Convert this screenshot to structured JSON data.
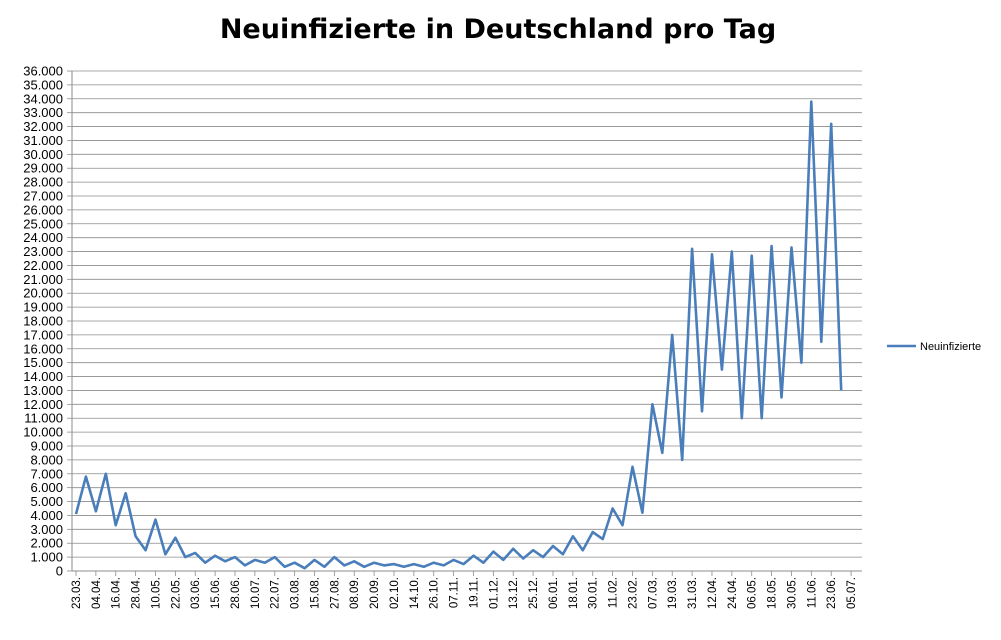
{
  "chart_data": {
    "type": "line",
    "title": "Neuinfizierte in Deutschland pro Tag",
    "xlabel": "",
    "ylabel": "",
    "ylim": [
      0,
      36000
    ],
    "y_step": 1000,
    "grid": true,
    "legend_position": "right",
    "series_color": "#4a7ebb",
    "x_tick_labels": [
      "23.03.",
      "04.04.",
      "16.04.",
      "28.04.",
      "10.05.",
      "22.05.",
      "03.06.",
      "15.06.",
      "28.06.",
      "10.07.",
      "22.07.",
      "03.08.",
      "15.08.",
      "27.08.",
      "08.09.",
      "20.09.",
      "02.10.",
      "14.10.",
      "26.10.",
      "07.11.",
      "19.11.",
      "01.12.",
      "13.12.",
      "25.12.",
      "06.01.",
      "18.01.",
      "30.01.",
      "11.02.",
      "23.02.",
      "07.03.",
      "19.03.",
      "31.03.",
      "12.04.",
      "24.04.",
      "06.05.",
      "18.05.",
      "30.05.",
      "11.06.",
      "23.06.",
      "05.07."
    ],
    "y_tick_labels": [
      "0",
      "1.000",
      "2.000",
      "3.000",
      "4.000",
      "5.000",
      "6.000",
      "7.000",
      "8.000",
      "9.000",
      "10.000",
      "11.000",
      "12.000",
      "13.000",
      "14.000",
      "15.000",
      "16.000",
      "17.000",
      "18.000",
      "19.000",
      "20.000",
      "21.000",
      "22.000",
      "23.000",
      "24.000",
      "25.000",
      "26.000",
      "27.000",
      "28.000",
      "29.000",
      "30.000",
      "31.000",
      "32.000",
      "33.000",
      "34.000",
      "35.000",
      "36.000"
    ],
    "series": [
      {
        "name": "Neuinfizierte",
        "x": [
          0,
          0.5,
          1,
          1.5,
          2,
          2.5,
          3,
          3.5,
          4,
          4.5,
          5,
          5.5,
          6,
          6.5,
          7,
          7.5,
          8,
          8.5,
          9,
          9.5,
          10,
          10.5,
          11,
          11.5,
          12,
          12.5,
          13,
          13.5,
          14,
          14.5,
          15,
          15.5,
          16,
          16.5,
          17,
          17.5,
          18,
          18.5,
          19,
          19.5,
          20,
          20.5,
          21,
          21.5,
          22,
          22.5,
          23,
          23.5,
          24,
          24.5,
          25,
          25.5,
          26,
          26.5,
          27,
          27.5,
          28,
          28.5,
          29,
          29.5,
          30,
          30.5,
          31,
          31.5,
          32,
          32.5,
          33,
          33.5,
          34,
          34.5,
          35,
          35.5,
          36,
          36.5,
          37,
          37.5,
          38,
          38.5
        ],
        "values": [
          4100,
          6800,
          4300,
          7000,
          3300,
          5600,
          2500,
          1500,
          3700,
          1200,
          2400,
          1000,
          1300,
          600,
          1100,
          700,
          1000,
          400,
          800,
          600,
          1000,
          300,
          600,
          200,
          800,
          300,
          1000,
          400,
          700,
          300,
          600,
          400,
          500,
          300,
          500,
          300,
          600,
          400,
          800,
          500,
          1100,
          600,
          1400,
          800,
          1600,
          900,
          1500,
          1000,
          1800,
          1200,
          2500,
          1500,
          2800,
          2300,
          4500,
          3300,
          7500,
          4200,
          12000,
          8500,
          17000,
          8000,
          23200,
          11500,
          22800,
          14500,
          23000,
          11000,
          22700,
          11000,
          23400,
          12500,
          23300,
          15000,
          33800,
          16500,
          32200,
          13000
        ]
      }
    ]
  }
}
